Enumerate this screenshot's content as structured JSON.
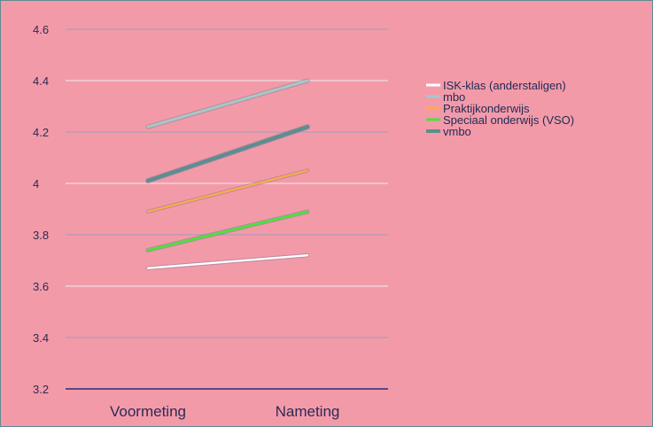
{
  "chart_data": {
    "type": "line",
    "categories": [
      "Voormeting",
      "Nameting"
    ],
    "ylim": [
      3.2,
      4.6
    ],
    "yticks": [
      "3.2",
      "3.4",
      "3.6",
      "3.8",
      "4",
      "4.2",
      "4.4",
      "4.6"
    ],
    "grid": true,
    "legend_position": "right",
    "series": [
      {
        "name": "ISK-klas (anderstaligen)",
        "values": [
          3.67,
          3.72
        ],
        "color": "#ffffff"
      },
      {
        "name": "mbo",
        "values": [
          4.22,
          4.4
        ],
        "color": "#a7c7c6"
      },
      {
        "name": "Praktijkonderwijs",
        "values": [
          3.89,
          4.05
        ],
        "color": "#ffa94d"
      },
      {
        "name": "Speciaal onderwijs (VSO)",
        "values": [
          3.74,
          3.89
        ],
        "color": "#4ee040"
      },
      {
        "name": "vmbo",
        "values": [
          4.01,
          4.22
        ],
        "color": "#5b8e90"
      }
    ]
  }
}
